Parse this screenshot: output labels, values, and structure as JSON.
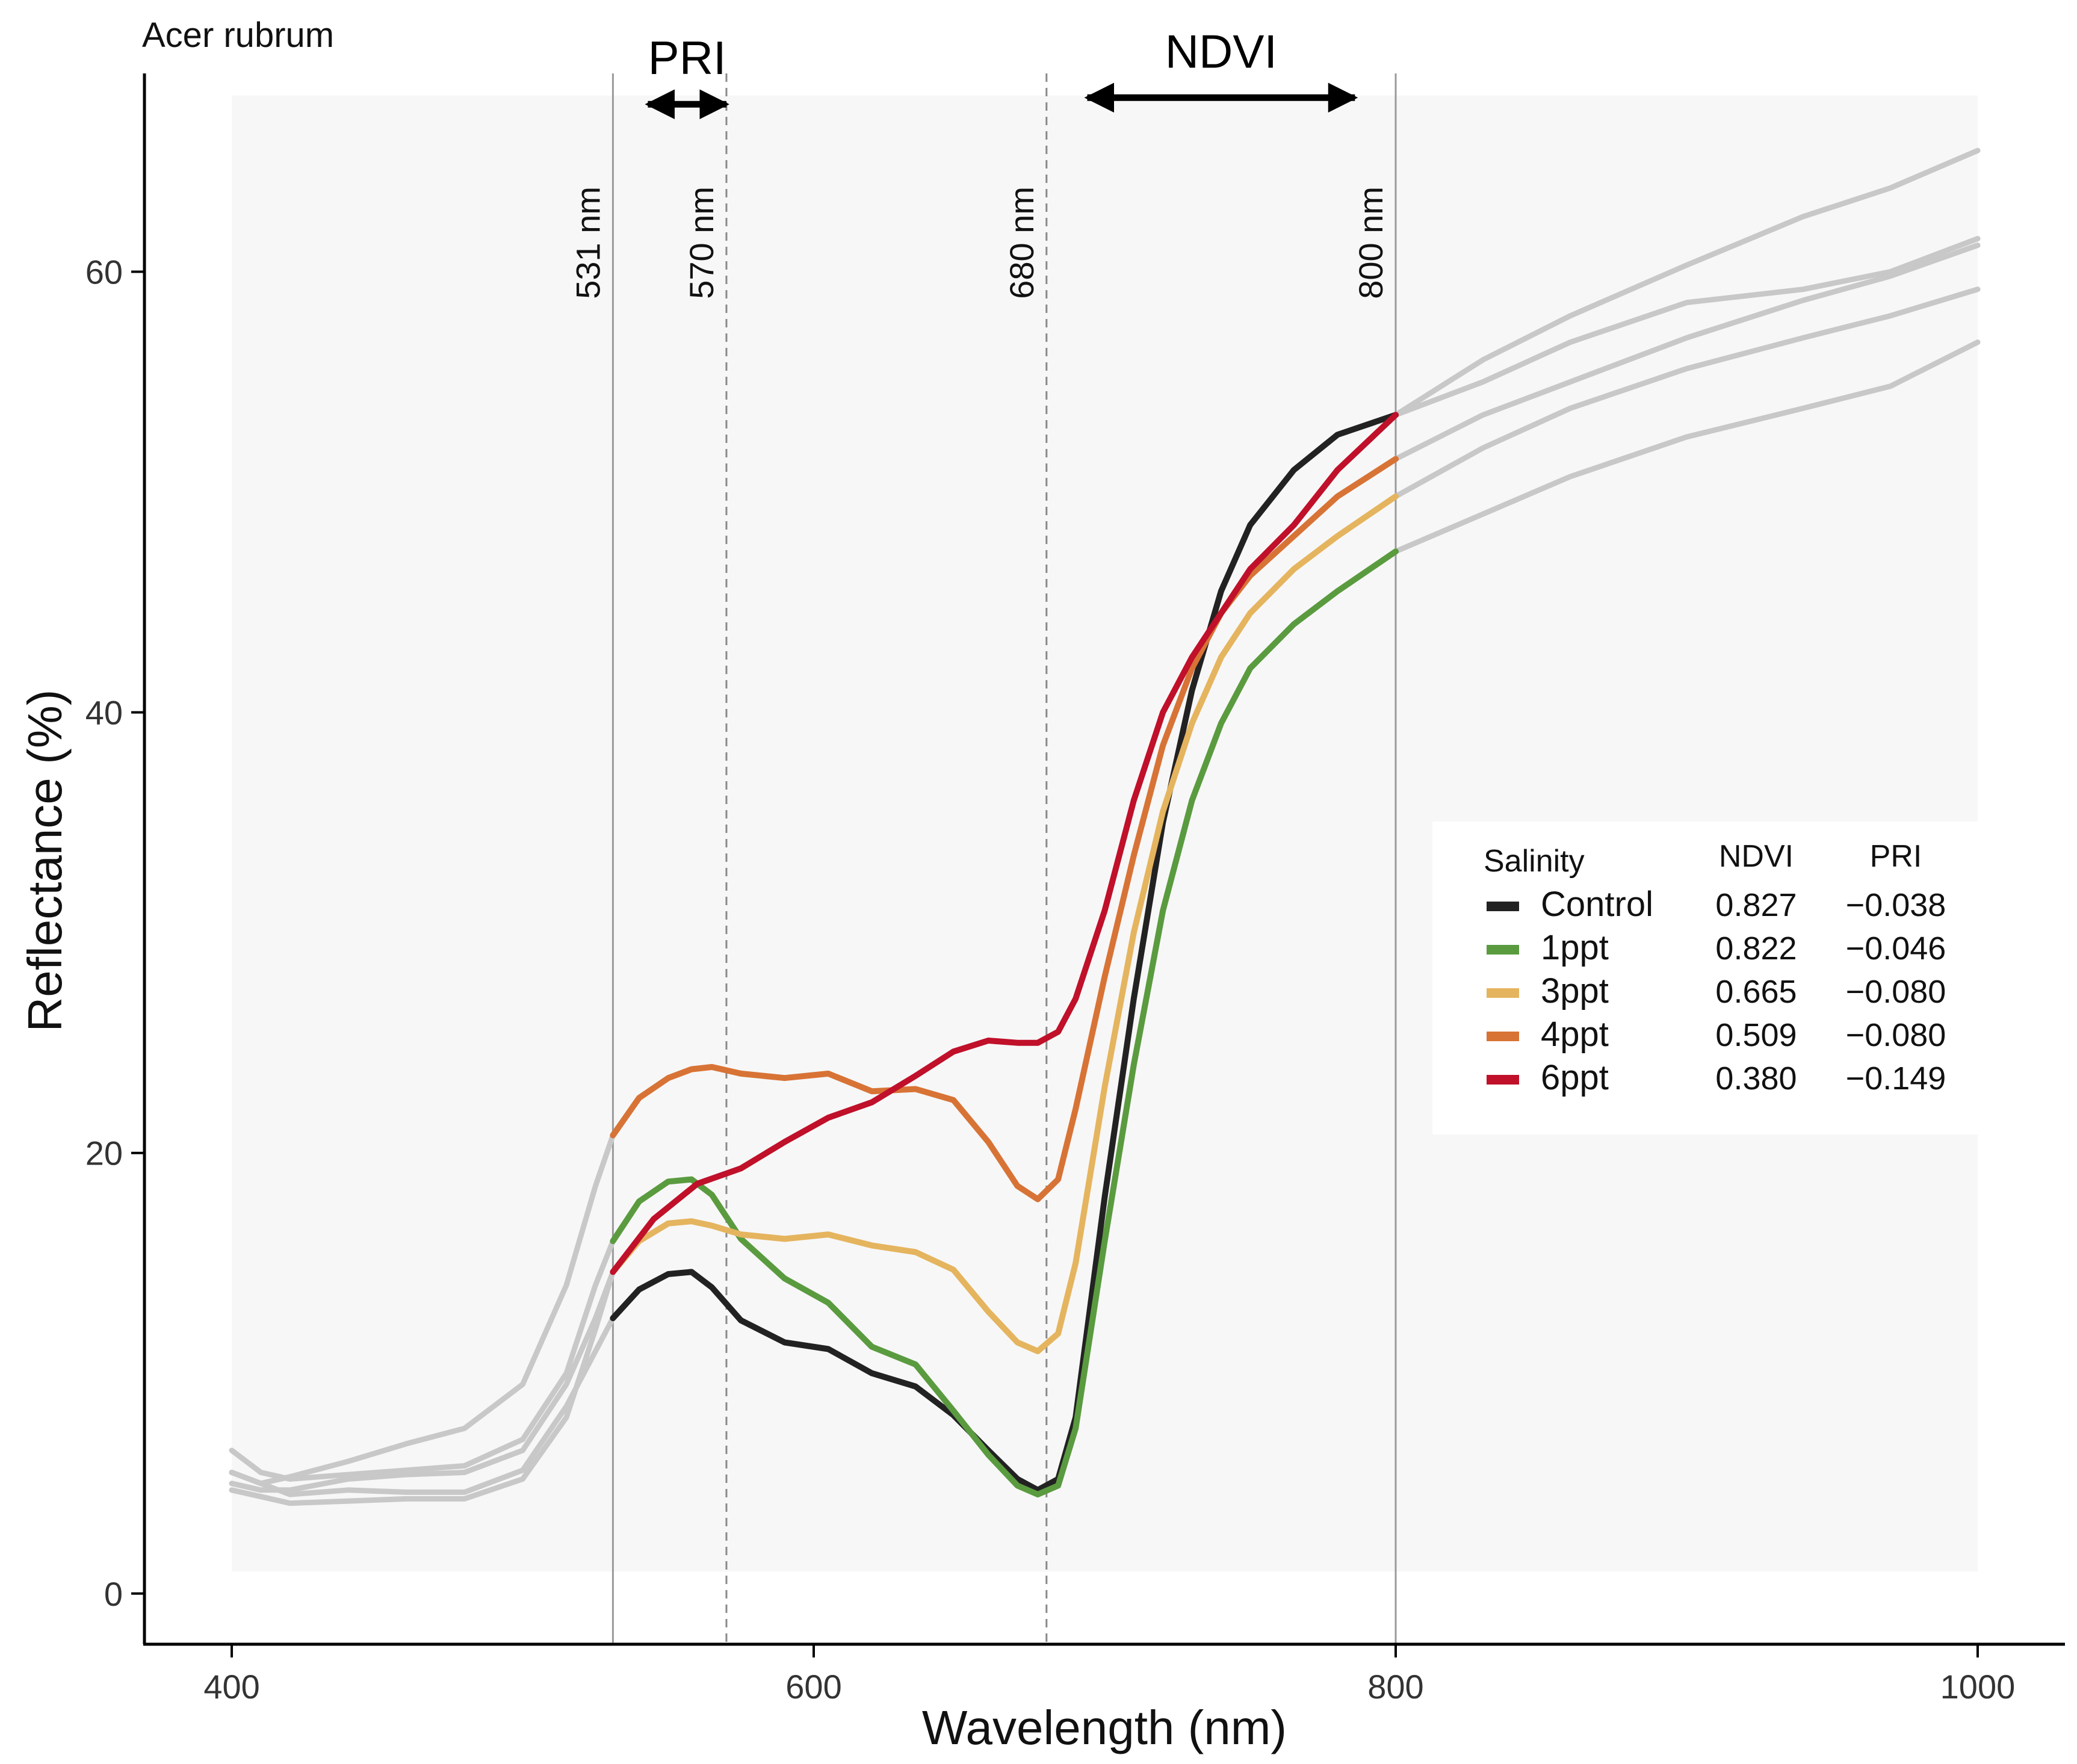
{
  "chart_data": {
    "type": "line",
    "title": "Acer rubrum",
    "xlabel": "Wavelength (nm)",
    "ylabel": "Reflectance (%)",
    "xlim": [
      370,
      1030
    ],
    "ylim": [
      -2.3,
      69
    ],
    "x_ticks": [
      400,
      600,
      800,
      1000
    ],
    "x_tick_labels": [
      "400",
      "600",
      "800",
      "1000"
    ],
    "y_ticks": [
      0,
      20,
      40,
      60
    ],
    "y_tick_labels": [
      "0",
      "20",
      "40",
      "60"
    ],
    "shaded_region": {
      "x": [
        400,
        1000
      ],
      "y": [
        1,
        68
      ]
    },
    "reference_lines": [
      {
        "x": 531,
        "label": "531 nm",
        "style": "solid"
      },
      {
        "x": 570,
        "label": "570 nm",
        "style": "dashed"
      },
      {
        "x": 680,
        "label": "680 nm",
        "style": "dashed"
      },
      {
        "x": 800,
        "label": "800 nm",
        "style": "solid"
      }
    ],
    "index_arrows": [
      {
        "name": "PRI",
        "label": "PRI",
        "x_from": 543,
        "x_to": 570,
        "y": 67.6
      },
      {
        "name": "NDVI",
        "label": "NDVI",
        "x_from": 694,
        "x_to": 786,
        "y": 67.9
      }
    ],
    "gray_color": "#c8c8c8",
    "series": [
      {
        "name": "Control",
        "color": "#222222",
        "ndvi": "0.827",
        "pri": "−0.038",
        "gray_left": [
          [
            400,
            5.5
          ],
          [
            410,
            5.0
          ],
          [
            420,
            4.5
          ],
          [
            440,
            4.7
          ],
          [
            460,
            4.6
          ],
          [
            480,
            4.6
          ],
          [
            500,
            5.6
          ],
          [
            515,
            8.5
          ],
          [
            525,
            11.0
          ],
          [
            531,
            12.5
          ]
        ],
        "colored": [
          [
            531,
            12.5
          ],
          [
            540,
            13.8
          ],
          [
            550,
            14.5
          ],
          [
            558,
            14.6
          ],
          [
            565,
            13.9
          ],
          [
            575,
            12.4
          ],
          [
            590,
            11.4
          ],
          [
            605,
            11.1
          ],
          [
            620,
            10.0
          ],
          [
            635,
            9.4
          ],
          [
            648,
            8.1
          ],
          [
            660,
            6.5
          ],
          [
            670,
            5.2
          ],
          [
            677,
            4.7
          ],
          [
            684,
            5.2
          ],
          [
            690,
            8.0
          ],
          [
            700,
            18.0
          ],
          [
            710,
            27.0
          ],
          [
            720,
            35.0
          ],
          [
            730,
            41.0
          ],
          [
            740,
            45.5
          ],
          [
            750,
            48.5
          ],
          [
            765,
            51.0
          ],
          [
            780,
            52.6
          ],
          [
            800,
            53.5
          ]
        ],
        "gray_right": [
          [
            800,
            53.5
          ],
          [
            830,
            56.0
          ],
          [
            860,
            58.0
          ],
          [
            900,
            60.3
          ],
          [
            940,
            62.5
          ],
          [
            970,
            63.8
          ],
          [
            1000,
            65.5
          ]
        ]
      },
      {
        "name": "1ppt",
        "color": "#5a9b3f",
        "ndvi": "0.822",
        "pri": "−0.046",
        "gray_left": [
          [
            400,
            6.5
          ],
          [
            410,
            5.5
          ],
          [
            420,
            5.2
          ],
          [
            440,
            5.4
          ],
          [
            460,
            5.6
          ],
          [
            480,
            5.8
          ],
          [
            500,
            7.0
          ],
          [
            515,
            10.0
          ],
          [
            525,
            14.0
          ],
          [
            531,
            16.0
          ]
        ],
        "colored": [
          [
            531,
            16.0
          ],
          [
            540,
            17.8
          ],
          [
            550,
            18.7
          ],
          [
            558,
            18.8
          ],
          [
            565,
            18.1
          ],
          [
            575,
            16.1
          ],
          [
            590,
            14.3
          ],
          [
            605,
            13.2
          ],
          [
            620,
            11.2
          ],
          [
            635,
            10.4
          ],
          [
            648,
            8.3
          ],
          [
            660,
            6.3
          ],
          [
            670,
            4.9
          ],
          [
            677,
            4.5
          ],
          [
            684,
            4.9
          ],
          [
            690,
            7.5
          ],
          [
            700,
            16.0
          ],
          [
            710,
            24.0
          ],
          [
            720,
            31.0
          ],
          [
            730,
            36.0
          ],
          [
            740,
            39.5
          ],
          [
            750,
            42.0
          ],
          [
            765,
            44.0
          ],
          [
            780,
            45.5
          ],
          [
            800,
            47.3
          ]
        ],
        "gray_right": [
          [
            800,
            47.3
          ],
          [
            830,
            49.0
          ],
          [
            860,
            50.7
          ],
          [
            900,
            52.5
          ],
          [
            940,
            53.8
          ],
          [
            970,
            54.8
          ],
          [
            1000,
            56.8
          ]
        ]
      },
      {
        "name": "3ppt",
        "color": "#e5b45e",
        "ndvi": "0.665",
        "pri": "−0.080",
        "gray_left": [
          [
            400,
            4.7
          ],
          [
            410,
            4.4
          ],
          [
            420,
            4.1
          ],
          [
            440,
            4.2
          ],
          [
            460,
            4.3
          ],
          [
            480,
            4.3
          ],
          [
            500,
            5.2
          ],
          [
            515,
            8.0
          ],
          [
            525,
            12.0
          ],
          [
            531,
            14.6
          ]
        ],
        "colored": [
          [
            531,
            14.6
          ],
          [
            540,
            16.0
          ],
          [
            550,
            16.8
          ],
          [
            558,
            16.9
          ],
          [
            565,
            16.7
          ],
          [
            575,
            16.3
          ],
          [
            590,
            16.1
          ],
          [
            605,
            16.3
          ],
          [
            620,
            15.8
          ],
          [
            635,
            15.5
          ],
          [
            648,
            14.7
          ],
          [
            660,
            12.8
          ],
          [
            670,
            11.4
          ],
          [
            677,
            11.0
          ],
          [
            684,
            11.8
          ],
          [
            690,
            15.0
          ],
          [
            700,
            23.0
          ],
          [
            710,
            30.0
          ],
          [
            720,
            35.5
          ],
          [
            730,
            39.5
          ],
          [
            740,
            42.5
          ],
          [
            750,
            44.5
          ],
          [
            765,
            46.5
          ],
          [
            780,
            48.0
          ],
          [
            800,
            49.8
          ]
        ],
        "gray_right": [
          [
            800,
            49.8
          ],
          [
            830,
            52.0
          ],
          [
            860,
            53.8
          ],
          [
            900,
            55.6
          ],
          [
            940,
            57.0
          ],
          [
            970,
            58.0
          ],
          [
            1000,
            59.2
          ]
        ]
      },
      {
        "name": "4ppt",
        "color": "#d87336",
        "ndvi": "0.509",
        "pri": "−0.080",
        "gray_left": [
          [
            400,
            5.5
          ],
          [
            410,
            5.0
          ],
          [
            420,
            5.3
          ],
          [
            440,
            6.0
          ],
          [
            460,
            6.8
          ],
          [
            480,
            7.5
          ],
          [
            500,
            9.5
          ],
          [
            515,
            14.0
          ],
          [
            525,
            18.5
          ],
          [
            531,
            20.8
          ]
        ],
        "colored": [
          [
            531,
            20.8
          ],
          [
            540,
            22.5
          ],
          [
            550,
            23.4
          ],
          [
            558,
            23.8
          ],
          [
            565,
            23.9
          ],
          [
            575,
            23.6
          ],
          [
            590,
            23.4
          ],
          [
            605,
            23.6
          ],
          [
            620,
            22.8
          ],
          [
            635,
            22.9
          ],
          [
            648,
            22.4
          ],
          [
            660,
            20.5
          ],
          [
            670,
            18.5
          ],
          [
            677,
            17.9
          ],
          [
            684,
            18.8
          ],
          [
            690,
            22.0
          ],
          [
            700,
            28.0
          ],
          [
            710,
            33.5
          ],
          [
            720,
            38.5
          ],
          [
            730,
            42.0
          ],
          [
            740,
            44.5
          ],
          [
            750,
            46.2
          ],
          [
            765,
            48.0
          ],
          [
            780,
            49.8
          ],
          [
            800,
            51.5
          ]
        ],
        "gray_right": [
          [
            800,
            51.5
          ],
          [
            830,
            53.5
          ],
          [
            860,
            55.0
          ],
          [
            900,
            57.0
          ],
          [
            940,
            58.7
          ],
          [
            970,
            59.8
          ],
          [
            1000,
            61.2
          ]
        ]
      },
      {
        "name": "6ppt",
        "color": "#c0102a",
        "ndvi": "0.380",
        "pri": "−0.149",
        "gray_left": [
          [
            400,
            5.0
          ],
          [
            410,
            4.7
          ],
          [
            420,
            4.7
          ],
          [
            440,
            5.2
          ],
          [
            460,
            5.4
          ],
          [
            480,
            5.5
          ],
          [
            500,
            6.5
          ],
          [
            515,
            9.5
          ],
          [
            525,
            12.5
          ],
          [
            531,
            14.6
          ]
        ],
        "colored": [
          [
            531,
            14.6
          ],
          [
            545,
            17.0
          ],
          [
            560,
            18.6
          ],
          [
            575,
            19.3
          ],
          [
            590,
            20.5
          ],
          [
            605,
            21.6
          ],
          [
            620,
            22.3
          ],
          [
            635,
            23.5
          ],
          [
            648,
            24.6
          ],
          [
            660,
            25.1
          ],
          [
            670,
            25.0
          ],
          [
            677,
            25.0
          ],
          [
            684,
            25.5
          ],
          [
            690,
            27.0
          ],
          [
            700,
            31.0
          ],
          [
            710,
            36.0
          ],
          [
            720,
            40.0
          ],
          [
            730,
            42.5
          ],
          [
            740,
            44.5
          ],
          [
            750,
            46.5
          ],
          [
            765,
            48.5
          ],
          [
            780,
            51.0
          ],
          [
            800,
            53.5
          ]
        ],
        "gray_right": [
          [
            800,
            53.5
          ],
          [
            830,
            55.0
          ],
          [
            860,
            56.8
          ],
          [
            900,
            58.6
          ],
          [
            940,
            59.2
          ],
          [
            970,
            60.0
          ],
          [
            1000,
            61.5
          ]
        ]
      }
    ],
    "legend": {
      "position": "right",
      "title": "Salinity",
      "col_ndvi": "NDVI",
      "col_pri": "PRI"
    }
  }
}
